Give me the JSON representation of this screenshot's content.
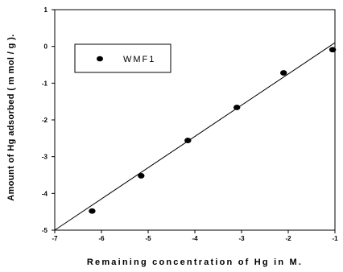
{
  "chart_data": {
    "type": "scatter",
    "title": "",
    "xlabel": "Remaining concentration of Hg in M.",
    "ylabel": "Amount of Hg adsorbed ( m mol / g ).",
    "xlim": [
      -7,
      -1
    ],
    "ylim": [
      -5,
      1
    ],
    "x_ticks": [
      -7,
      -6,
      -5,
      -4,
      -3,
      -2,
      -1
    ],
    "y_ticks": [
      -5,
      -4,
      -3,
      -2,
      -1,
      0,
      1
    ],
    "grid": false,
    "legend_position": "top-left",
    "series": [
      {
        "name": "WMF1",
        "marker": "filled-ellipse",
        "color": "#000000",
        "x": [
          -6.2,
          -5.15,
          -4.15,
          -3.1,
          -2.1,
          -1.05
        ],
        "y": [
          -4.48,
          -3.52,
          -2.56,
          -1.66,
          -0.72,
          -0.09
        ]
      }
    ],
    "fit_line": {
      "from": [
        -7,
        -5.0
      ],
      "to": [
        -1,
        0.1
      ],
      "color": "#000000"
    }
  }
}
